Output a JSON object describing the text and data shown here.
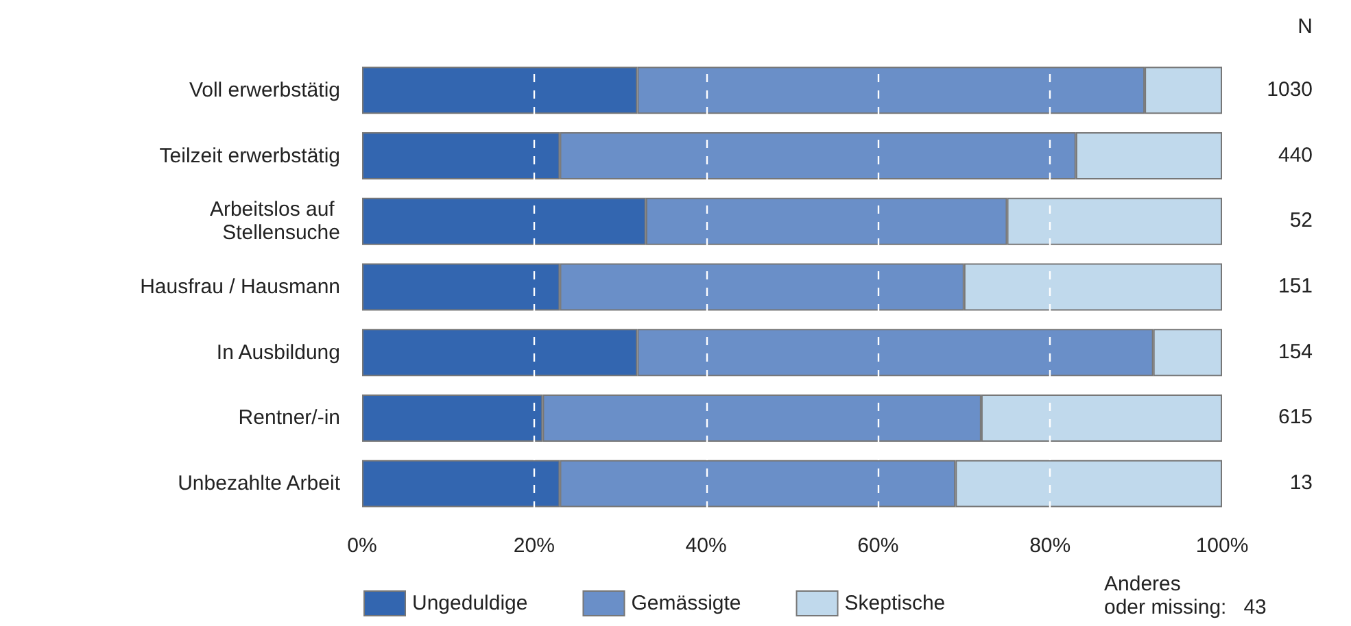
{
  "chart_data": {
    "type": "bar",
    "orientation": "horizontal",
    "stacked": true,
    "categories": [
      "Voll erwerbstätig",
      "Teilzeit erwerbstätig",
      "Arbeitslos auf Stellensuche",
      "Hausfrau / Hausmann",
      "In Ausbildung",
      "Rentner/-in",
      "Unbezahlte Arbeit"
    ],
    "series": [
      {
        "name": "Ungeduldige",
        "color": "#3366b0",
        "values": [
          32,
          23,
          33,
          23,
          32,
          21,
          23
        ]
      },
      {
        "name": "Gemässigte",
        "color": "#6a8fc8",
        "values": [
          59,
          60,
          42,
          47,
          60,
          51,
          46
        ]
      },
      {
        "name": "Skeptische",
        "color": "#c0d9ec",
        "values": [
          9,
          17,
          25,
          30,
          8,
          28,
          31
        ]
      }
    ],
    "xlim": [
      0,
      100
    ],
    "xticks": [
      {
        "value": 0,
        "label": "0%"
      },
      {
        "value": 20,
        "label": "20%"
      },
      {
        "value": 40,
        "label": "40%"
      },
      {
        "value": 60,
        "label": "60%"
      },
      {
        "value": 80,
        "label": "80%"
      },
      {
        "value": 100,
        "label": "100%"
      }
    ],
    "grid": "x",
    "legend": "bottom",
    "annotations": [
      "N",
      "1030",
      "440",
      "52",
      "151",
      "154",
      "615",
      "13",
      "Anderes oder missing:   43"
    ]
  }
}
